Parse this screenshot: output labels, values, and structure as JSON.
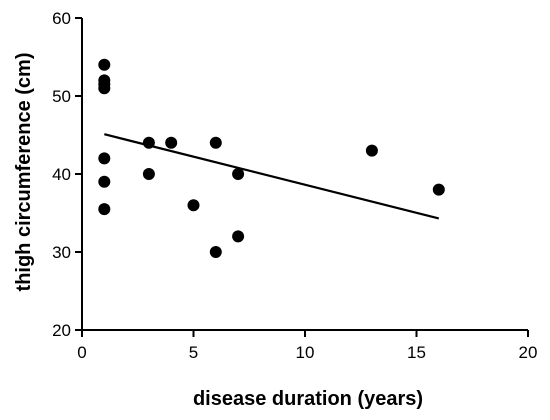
{
  "chart_data": {
    "type": "scatter",
    "title": "",
    "xlabel": "disease duration (years)",
    "ylabel": "thigh circumference (cm)",
    "xlim": [
      0,
      20
    ],
    "ylim": [
      20,
      60
    ],
    "x_ticks": [
      "0",
      "5",
      "10",
      "15",
      "20"
    ],
    "y_ticks": [
      "20",
      "30",
      "40",
      "50",
      "60"
    ],
    "grid": false,
    "legend": "none",
    "marker_color": "#000000",
    "points": [
      {
        "x": 1,
        "y": 54
      },
      {
        "x": 1,
        "y": 52
      },
      {
        "x": 1,
        "y": 51.5
      },
      {
        "x": 1,
        "y": 51
      },
      {
        "x": 1,
        "y": 42
      },
      {
        "x": 1,
        "y": 39
      },
      {
        "x": 1,
        "y": 35.5
      },
      {
        "x": 3,
        "y": 44
      },
      {
        "x": 3,
        "y": 40
      },
      {
        "x": 4,
        "y": 44
      },
      {
        "x": 5,
        "y": 36
      },
      {
        "x": 6,
        "y": 44
      },
      {
        "x": 6,
        "y": 30
      },
      {
        "x": 7,
        "y": 40
      },
      {
        "x": 7,
        "y": 32
      },
      {
        "x": 13,
        "y": 43
      },
      {
        "x": 16,
        "y": 38
      }
    ],
    "trendline": {
      "type": "linear",
      "start": {
        "x": 1,
        "y": 45.1
      },
      "end": {
        "x": 16,
        "y": 34.3
      },
      "color": "#000000"
    }
  }
}
